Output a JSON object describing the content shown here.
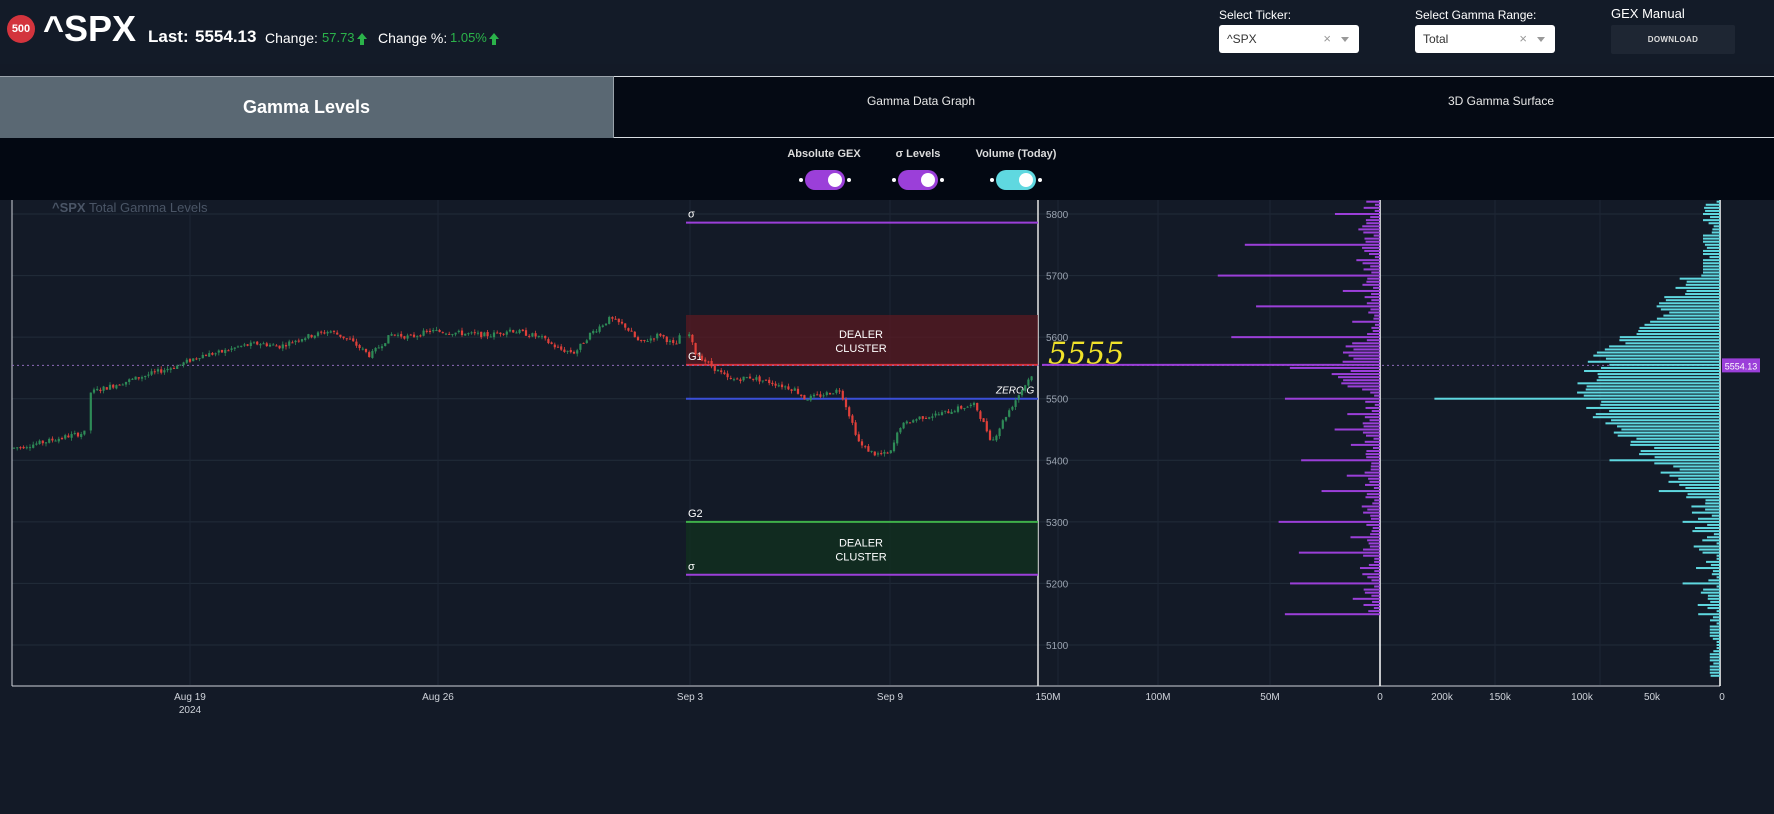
{
  "header": {
    "logo_badge": "500",
    "symbol": "^SPX",
    "last_label": "Last:",
    "last_value": "5554.13",
    "change_label": "Change:",
    "change_value": "57.73",
    "change_pct_label": "Change %:",
    "change_pct_value": "1.05%",
    "up_color": "#2bb34a",
    "ticker_select": {
      "label": "Select Ticker:",
      "value": "^SPX",
      "clear": "×"
    },
    "gamma_select": {
      "label": "Select Gamma Range:",
      "value": "Total",
      "clear": "×"
    },
    "gex_manual_label": "GEX Manual",
    "download_label": "DOWNLOAD"
  },
  "tabs": [
    {
      "label": "Gamma Levels",
      "active": true
    },
    {
      "label": "Gamma Data Graph",
      "active": false
    },
    {
      "label": "3D Gamma Surface",
      "active": false
    }
  ],
  "toggles": [
    {
      "label": "Absolute GEX",
      "on": true,
      "color": "#9b3fd9"
    },
    {
      "label": "σ Levels",
      "on": true,
      "color": "#9b3fd9"
    },
    {
      "label": "Volume (Today)",
      "on": true,
      "color": "#5fd8e0"
    }
  ],
  "chart_data": {
    "type": "candlestick",
    "title": "^SPX Total Gamma Levels",
    "title_bold": "^SPX",
    "title_rest": "Total Gamma Levels",
    "x_ticks": [
      {
        "label": "Aug 19",
        "sub": "2024"
      },
      {
        "label": "Aug 26",
        "sub": ""
      },
      {
        "label": "Sep 3",
        "sub": ""
      },
      {
        "label": "Sep 9",
        "sub": ""
      }
    ],
    "y_ticks": [
      5100,
      5200,
      5300,
      5400,
      5500,
      5600,
      5700,
      5800
    ],
    "ylim": [
      5035,
      5835
    ],
    "last_price": 5554.13,
    "last_price_label": "5554.13",
    "levels": [
      {
        "label": "σ",
        "price": 5786,
        "color": "#9b3fd9"
      },
      {
        "label": "G1",
        "price": 5555,
        "color": "#d9323a"
      },
      {
        "label": "ZERO G",
        "price": 5500,
        "color": "#3a4fd8"
      },
      {
        "label": "G2",
        "price": 5300,
        "color": "#3fb04a"
      },
      {
        "label": "σ",
        "price": 5214,
        "color": "#9b3fd9"
      }
    ],
    "zones": [
      {
        "label_line1": "DEALER",
        "label_line2": "CLUSTER",
        "from": 5555,
        "to": 5636,
        "color": "#5a1a22"
      },
      {
        "label_line1": "DEALER",
        "label_line2": "CLUSTER",
        "from": 5214,
        "to": 5300,
        "color": "#12321f"
      }
    ],
    "annotation": "5555",
    "annotation_color": "#f0e22a",
    "gex_axis_ticks": [
      "150M",
      "100M",
      "50M",
      "0"
    ],
    "volume_axis_ticks": [
      "200k",
      "150k",
      "100k",
      "50k",
      "0"
    ],
    "gex_color": "#9b3fd9",
    "volume_color": "#5fd8e0",
    "up_color": "#2e8b57",
    "down_color": "#e0403a"
  }
}
